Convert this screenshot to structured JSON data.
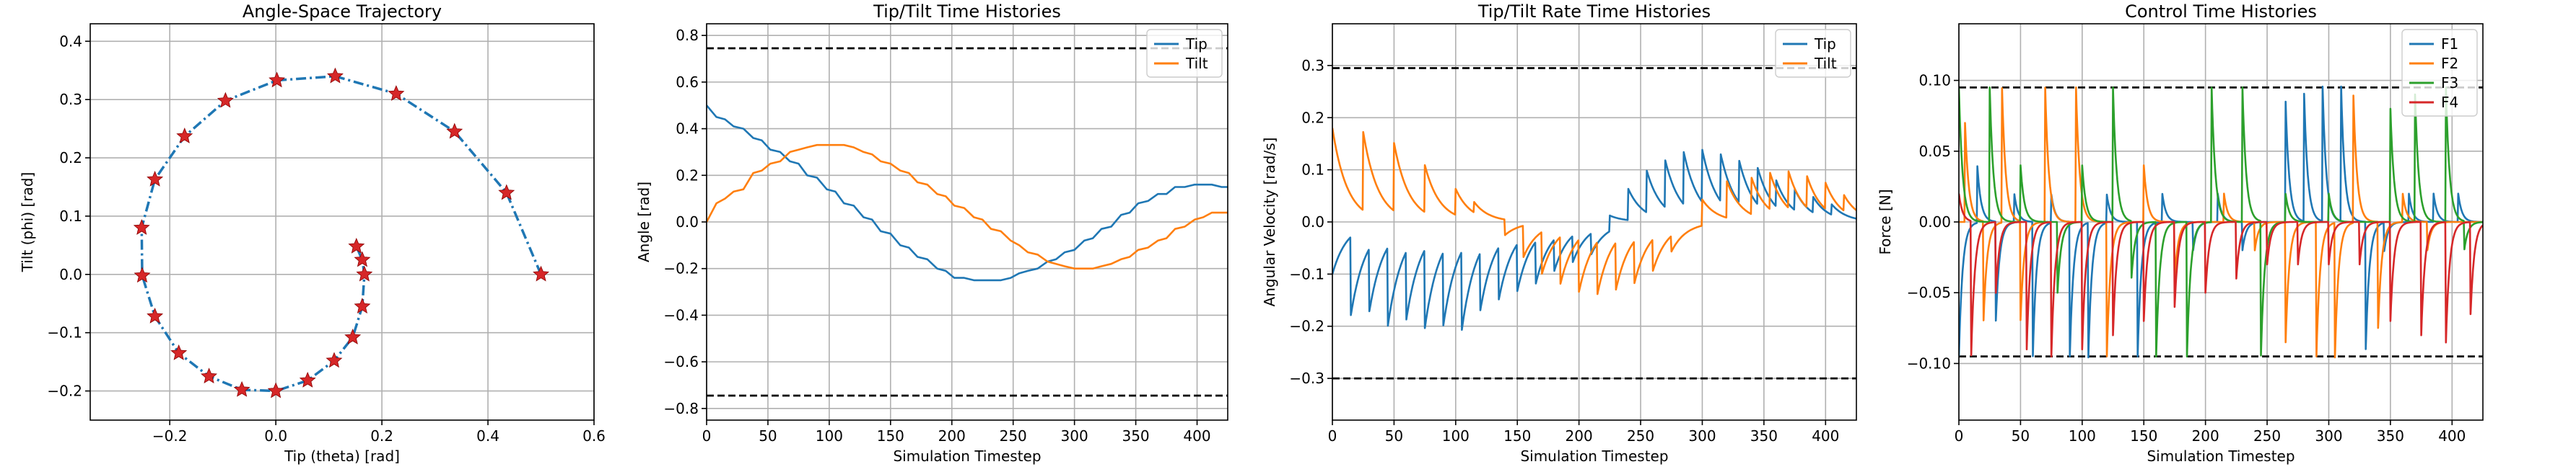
{
  "chart_data": [
    {
      "type": "line",
      "title": "Angle-Space Trajectory",
      "xlabel": "Tip (theta) [rad]",
      "ylabel": "Tilt (phi) [rad]",
      "xlim": [
        -0.35,
        0.6
      ],
      "ylim": [
        -0.25,
        0.43
      ],
      "xticks": [
        -0.2,
        0.0,
        0.2,
        0.4,
        0.6
      ],
      "xtick_labels": [
        "−0.2",
        "0.0",
        "0.2",
        "0.4",
        "0.6"
      ],
      "yticks": [
        -0.2,
        -0.1,
        0.0,
        0.1,
        0.2,
        0.3,
        0.4
      ],
      "ytick_labels": [
        "−0.2",
        "−0.1",
        "0.0",
        "0.1",
        "0.2",
        "0.3",
        "0.4"
      ],
      "grid": true,
      "line_color": "#1f77b4",
      "line_style": "dash-dot",
      "marker_color": "#d62728",
      "marker": "star",
      "series": [
        {
          "x": [
            0.5,
            0.435,
            0.337,
            0.227,
            0.112,
            0.002,
            -0.095,
            -0.172,
            -0.228,
            -0.253,
            -0.252,
            -0.228,
            -0.183,
            -0.126,
            -0.064,
            0.0,
            0.06,
            0.11,
            0.145,
            0.163,
            0.167,
            0.163,
            0.152
          ],
          "y": [
            0.0,
            0.14,
            0.245,
            0.31,
            0.34,
            0.333,
            0.298,
            0.237,
            0.163,
            0.08,
            -0.002,
            -0.072,
            -0.135,
            -0.175,
            -0.198,
            -0.2,
            -0.182,
            -0.148,
            -0.108,
            -0.055,
            0.0,
            0.025,
            0.048
          ]
        }
      ]
    },
    {
      "type": "line",
      "title": "Tip/Tilt Time Histories",
      "xlabel": "Simulation Timestep",
      "ylabel": "Angle [rad]",
      "xlim": [
        0,
        425
      ],
      "ylim": [
        -0.85,
        0.85
      ],
      "xticks": [
        0,
        50,
        100,
        150,
        200,
        250,
        300,
        350,
        400
      ],
      "xtick_labels": [
        "0",
        "50",
        "100",
        "150",
        "200",
        "250",
        "300",
        "350",
        "400"
      ],
      "yticks": [
        -0.8,
        -0.6,
        -0.4,
        -0.2,
        0.0,
        0.2,
        0.4,
        0.6,
        0.8
      ],
      "ytick_labels": [
        "−0.8",
        "−0.6",
        "−0.4",
        "−0.2",
        "0.0",
        "0.2",
        "0.4",
        "0.6",
        "0.8"
      ],
      "hlines": [
        0.745,
        -0.745
      ],
      "grid": true,
      "legend_position": "top-right",
      "series": [
        {
          "name": "Tip",
          "color": "#1f77b4",
          "x": [
            0,
            8,
            15,
            22,
            30,
            38,
            45,
            52,
            60,
            68,
            75,
            82,
            90,
            98,
            105,
            112,
            120,
            128,
            135,
            142,
            150,
            158,
            165,
            172,
            180,
            188,
            195,
            202,
            210,
            218,
            225,
            232,
            240,
            248,
            255,
            262,
            270,
            278,
            285,
            292,
            300,
            308,
            315,
            322,
            330,
            338,
            345,
            352,
            360,
            368,
            375,
            382,
            390,
            398,
            405,
            412,
            420,
            425
          ],
          "y": [
            0.5,
            0.45,
            0.44,
            0.41,
            0.4,
            0.36,
            0.35,
            0.31,
            0.3,
            0.26,
            0.25,
            0.2,
            0.19,
            0.14,
            0.13,
            0.08,
            0.07,
            0.02,
            0.01,
            -0.04,
            -0.05,
            -0.1,
            -0.11,
            -0.15,
            -0.16,
            -0.2,
            -0.21,
            -0.24,
            -0.24,
            -0.25,
            -0.25,
            -0.25,
            -0.25,
            -0.24,
            -0.22,
            -0.21,
            -0.2,
            -0.17,
            -0.16,
            -0.13,
            -0.12,
            -0.08,
            -0.07,
            -0.03,
            -0.02,
            0.03,
            0.04,
            0.08,
            0.09,
            0.12,
            0.12,
            0.15,
            0.15,
            0.16,
            0.16,
            0.16,
            0.15,
            0.15
          ]
        },
        {
          "name": "Tilt",
          "color": "#ff7f0e",
          "x": [
            0,
            8,
            15,
            22,
            30,
            38,
            45,
            52,
            60,
            68,
            75,
            82,
            90,
            98,
            105,
            112,
            120,
            128,
            135,
            142,
            150,
            158,
            165,
            172,
            180,
            188,
            195,
            202,
            210,
            218,
            225,
            232,
            240,
            248,
            255,
            262,
            270,
            278,
            285,
            292,
            300,
            308,
            315,
            322,
            330,
            338,
            345,
            352,
            360,
            368,
            375,
            382,
            390,
            398,
            405,
            412,
            420,
            425
          ],
          "y": [
            0.0,
            0.08,
            0.1,
            0.13,
            0.14,
            0.21,
            0.22,
            0.25,
            0.26,
            0.3,
            0.31,
            0.32,
            0.33,
            0.33,
            0.33,
            0.33,
            0.32,
            0.3,
            0.29,
            0.26,
            0.25,
            0.22,
            0.21,
            0.17,
            0.16,
            0.12,
            0.11,
            0.07,
            0.06,
            0.02,
            0.01,
            -0.03,
            -0.04,
            -0.08,
            -0.1,
            -0.13,
            -0.14,
            -0.17,
            -0.18,
            -0.19,
            -0.2,
            -0.2,
            -0.2,
            -0.19,
            -0.18,
            -0.16,
            -0.15,
            -0.12,
            -0.11,
            -0.08,
            -0.07,
            -0.03,
            -0.02,
            0.01,
            0.02,
            0.04,
            0.04,
            0.04
          ]
        }
      ]
    },
    {
      "type": "line",
      "title": "Tip/Tilt Rate Time Histories",
      "xlabel": "Simulation Timestep",
      "ylabel": "Angular Velocity [rad/s]",
      "xlim": [
        0,
        425
      ],
      "ylim": [
        -0.38,
        0.38
      ],
      "xticks": [
        0,
        50,
        100,
        150,
        200,
        250,
        300,
        350,
        400
      ],
      "xtick_labels": [
        "0",
        "50",
        "100",
        "150",
        "200",
        "250",
        "300",
        "350",
        "400"
      ],
      "yticks": [
        -0.3,
        -0.2,
        -0.1,
        0.0,
        0.1,
        0.2,
        0.3
      ],
      "ytick_labels": [
        "−0.3",
        "−0.2",
        "−0.1",
        "0.0",
        "0.1",
        "0.2",
        "0.3"
      ],
      "hlines": [
        0.295,
        -0.3
      ],
      "grid": true,
      "legend_position": "top-right",
      "series": [
        {
          "name": "Tip",
          "color": "#1f77b4",
          "spikes": [
            [
              0,
              -0.1
            ],
            [
              15,
              -0.15
            ],
            [
              30,
              -0.12
            ],
            [
              45,
              -0.15
            ],
            [
              60,
              -0.13
            ],
            [
              75,
              -0.15
            ],
            [
              90,
              -0.14
            ],
            [
              105,
              -0.15
            ],
            [
              120,
              -0.11
            ],
            [
              135,
              -0.1
            ],
            [
              150,
              -0.09
            ],
            [
              165,
              -0.08
            ],
            [
              180,
              -0.06
            ],
            [
              195,
              -0.05
            ],
            [
              210,
              -0.04
            ],
            [
              225,
              0.03
            ],
            [
              240,
              0.06
            ],
            [
              255,
              0.08
            ],
            [
              270,
              0.09
            ],
            [
              285,
              0.1
            ],
            [
              300,
              0.1
            ],
            [
              315,
              0.09
            ],
            [
              330,
              0.08
            ],
            [
              345,
              0.07
            ],
            [
              360,
              0.05
            ],
            [
              375,
              0.04
            ],
            [
              390,
              0.03
            ],
            [
              405,
              0.02
            ]
          ],
          "decay": 12
        },
        {
          "name": "Tilt",
          "color": "#ff7f0e",
          "spikes": [
            [
              0,
              0.18
            ],
            [
              25,
              0.15
            ],
            [
              50,
              0.13
            ],
            [
              75,
              0.09
            ],
            [
              100,
              0.05
            ],
            [
              115,
              0.02
            ],
            [
              140,
              -0.03
            ],
            [
              155,
              -0.06
            ],
            [
              170,
              -0.08
            ],
            [
              185,
              -0.09
            ],
            [
              200,
              -0.1
            ],
            [
              215,
              -0.1
            ],
            [
              230,
              -0.09
            ],
            [
              245,
              -0.08
            ],
            [
              260,
              -0.06
            ],
            [
              275,
              -0.03
            ],
            [
              300,
              0.05
            ],
            [
              320,
              0.07
            ],
            [
              340,
              0.07
            ],
            [
              355,
              0.07
            ],
            [
              370,
              0.07
            ],
            [
              385,
              0.06
            ],
            [
              400,
              0.05
            ],
            [
              415,
              0.03
            ]
          ],
          "decay": 12
        }
      ]
    },
    {
      "type": "line",
      "title": "Control Time Histories",
      "xlabel": "Simulation Timestep",
      "ylabel": "Force [N]",
      "xlim": [
        0,
        425
      ],
      "ylim": [
        -0.14,
        0.14
      ],
      "xticks": [
        0,
        50,
        100,
        150,
        200,
        250,
        300,
        350,
        400
      ],
      "xtick_labels": [
        "0",
        "50",
        "100",
        "150",
        "200",
        "250",
        "300",
        "350",
        "400"
      ],
      "yticks": [
        -0.1,
        -0.05,
        0.0,
        0.05,
        0.1
      ],
      "ytick_labels": [
        "−0.10",
        "−0.05",
        "0.00",
        "0.05",
        "0.10"
      ],
      "hlines": [
        0.095,
        -0.095
      ],
      "grid": true,
      "legend_position": "top-right",
      "series": [
        {
          "name": "F1",
          "color": "#1f77b4",
          "spikes": [
            [
              0,
              -0.095
            ],
            [
              15,
              0.04
            ],
            [
              30,
              -0.07
            ],
            [
              45,
              0.02
            ],
            [
              60,
              -0.095
            ],
            [
              75,
              0.02
            ],
            [
              90,
              -0.095
            ],
            [
              105,
              -0.095
            ],
            [
              120,
              0.02
            ],
            [
              145,
              -0.095
            ],
            [
              165,
              0.02
            ],
            [
              190,
              -0.02
            ],
            [
              210,
              0.02
            ],
            [
              230,
              -0.02
            ],
            [
              265,
              0.085
            ],
            [
              280,
              0.09
            ],
            [
              295,
              0.095
            ],
            [
              310,
              0.095
            ],
            [
              330,
              -0.09
            ],
            [
              345,
              -0.02
            ],
            [
              365,
              0.02
            ],
            [
              385,
              0.02
            ],
            [
              405,
              0.02
            ]
          ],
          "decay": 3
        },
        {
          "name": "F2",
          "color": "#ff7f0e",
          "spikes": [
            [
              5,
              0.07
            ],
            [
              20,
              -0.07
            ],
            [
              35,
              0.095
            ],
            [
              50,
              -0.07
            ],
            [
              70,
              0.095
            ],
            [
              95,
              0.095
            ],
            [
              120,
              -0.095
            ],
            [
              150,
              0.04
            ],
            [
              175,
              -0.04
            ],
            [
              215,
              0.02
            ],
            [
              240,
              -0.02
            ],
            [
              265,
              -0.085
            ],
            [
              290,
              -0.095
            ],
            [
              305,
              -0.095
            ],
            [
              320,
              0.09
            ],
            [
              340,
              -0.075
            ],
            [
              360,
              0.02
            ],
            [
              380,
              -0.02
            ]
          ],
          "decay": 3
        },
        {
          "name": "F3",
          "color": "#2ca02c",
          "spikes": [
            [
              0,
              0.095
            ],
            [
              25,
              0.095
            ],
            [
              50,
              0.04
            ],
            [
              80,
              -0.05
            ],
            [
              100,
              0.04
            ],
            [
              125,
              0.095
            ],
            [
              140,
              -0.04
            ],
            [
              160,
              -0.095
            ],
            [
              185,
              -0.095
            ],
            [
              205,
              0.095
            ],
            [
              230,
              0.095
            ],
            [
              245,
              -0.095
            ],
            [
              265,
              0.02
            ],
            [
              300,
              0.02
            ],
            [
              350,
              0.08
            ],
            [
              370,
              0.09
            ],
            [
              395,
              0.095
            ],
            [
              410,
              -0.02
            ]
          ],
          "decay": 3
        },
        {
          "name": "F4",
          "color": "#d62728",
          "spikes": [
            [
              0,
              0.02
            ],
            [
              10,
              -0.095
            ],
            [
              30,
              -0.05
            ],
            [
              55,
              -0.09
            ],
            [
              75,
              -0.095
            ],
            [
              100,
              -0.09
            ],
            [
              125,
              -0.08
            ],
            [
              150,
              -0.07
            ],
            [
              175,
              -0.06
            ],
            [
              200,
              -0.05
            ],
            [
              225,
              -0.04
            ],
            [
              250,
              -0.03
            ],
            [
              275,
              -0.03
            ],
            [
              300,
              -0.03
            ],
            [
              325,
              -0.03
            ],
            [
              350,
              -0.07
            ],
            [
              375,
              -0.08
            ],
            [
              395,
              -0.085
            ],
            [
              415,
              -0.065
            ]
          ],
          "decay": 3
        }
      ]
    }
  ]
}
